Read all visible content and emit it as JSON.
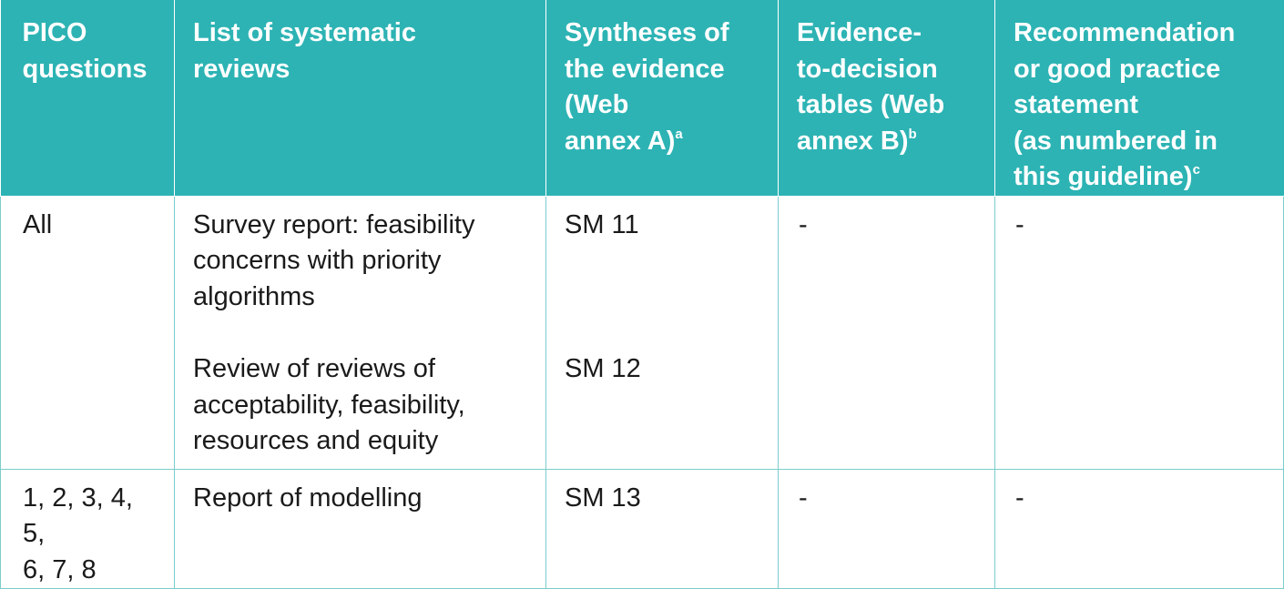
{
  "headers": {
    "pico": [
      "PICO",
      "questions"
    ],
    "reviews": [
      "List of systematic",
      "reviews"
    ],
    "syntheses": {
      "lines": [
        "Syntheses of",
        "the evidence",
        "(Web",
        "annex A)"
      ],
      "note": "a"
    },
    "etd": {
      "lines": [
        "Evidence-",
        "to-decision",
        "tables (Web",
        "annex B)"
      ],
      "note": "b"
    },
    "recommendation": {
      "lines": [
        "Recommendation",
        "or good practice",
        "statement",
        "(as numbered in",
        "this guideline)"
      ],
      "note": "c"
    }
  },
  "rows": [
    {
      "pico": [
        "All"
      ],
      "reviews": [
        [
          "Survey report: feasibility",
          "concerns with priority",
          "algorithms"
        ],
        [
          "Review of reviews of",
          "acceptability, feasibility,",
          "resources and equity"
        ]
      ],
      "syntheses": [
        "SM 11",
        "SM 12"
      ],
      "etd": "-",
      "recommendation": "-"
    },
    {
      "pico": [
        "1, 2, 3, 4, 5,",
        "6, 7, 8"
      ],
      "reviews": [
        [
          "Report of modelling"
        ]
      ],
      "syntheses": [
        "SM 13"
      ],
      "etd": "-",
      "recommendation": "-"
    }
  ]
}
